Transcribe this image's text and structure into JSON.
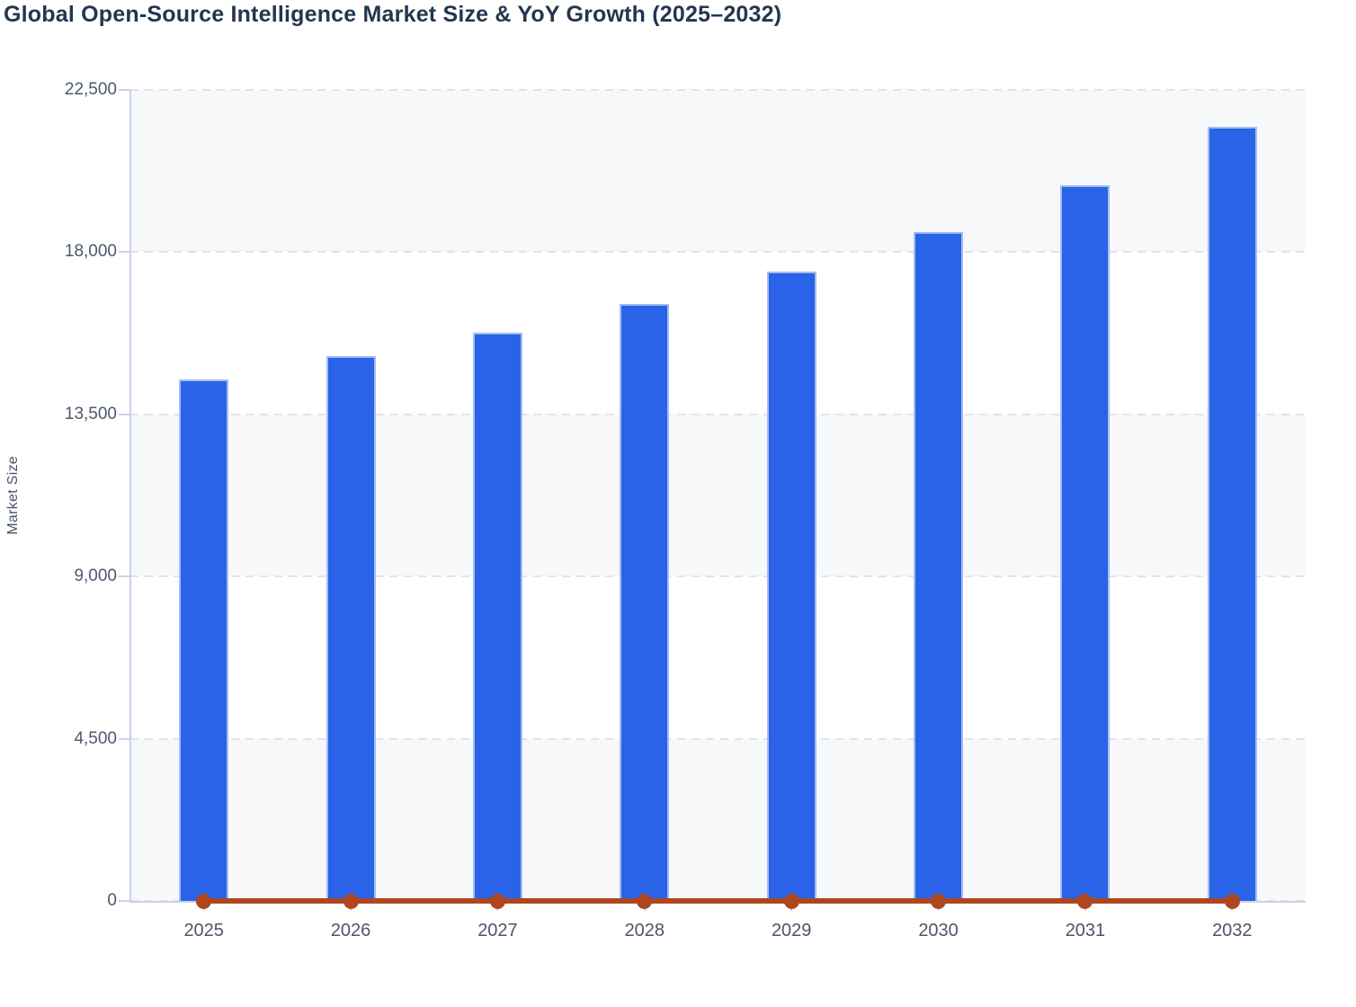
{
  "chart_data": {
    "type": "bar",
    "title": "Global Open-Source Intelligence Market Size & YoY Growth (2025–2032)",
    "categories": [
      "2025",
      "2026",
      "2027",
      "2028",
      "2029",
      "2030",
      "2031",
      "2032"
    ],
    "series": [
      {
        "name": "Market Size",
        "type": "bar",
        "color": "#2a63e8",
        "values": [
          14460,
          15120,
          15760,
          16570,
          17460,
          18550,
          19860,
          21470
        ]
      },
      {
        "name": "YoY Growth",
        "type": "line",
        "color": "#ae471f",
        "values": [
          0,
          0,
          0,
          0,
          0,
          0,
          0,
          0
        ]
      }
    ],
    "xlabel": "",
    "ylabel": "Market Size",
    "ylim": [
      0,
      22500
    ],
    "yticks": [
      22500,
      18000,
      13500,
      9000,
      4500,
      0
    ],
    "ytick_labels": [
      "22,500",
      "18,000",
      "13,500",
      "9,000",
      "4,500",
      "0"
    ],
    "grid": "horizontal-dashed",
    "legend": "none",
    "plot_band_colors": [
      "#f6f8fa",
      "#ffffff"
    ]
  },
  "colors": {
    "title": "#24364e",
    "axis_line": "#cbd1e8",
    "tick_label": "#4d586e",
    "gridline": "#e0e3ed",
    "bar_fill": "#2a63e8",
    "bar_stroke": "#a3bdf2",
    "line_stroke": "#ae471f",
    "band_gray": "#f6f8fa",
    "background": "#ffffff"
  }
}
